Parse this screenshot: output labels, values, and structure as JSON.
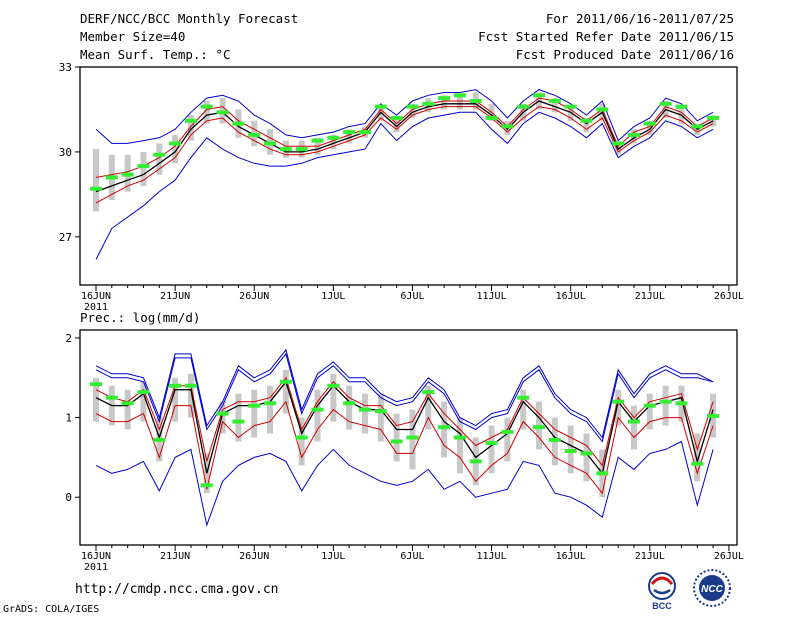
{
  "header": {
    "title": "DERF/NCC/BCC Monthly Forecast",
    "member_size": "Member Size=40",
    "variable": "Mean Surf. Temp.: °C",
    "forecast_period": "For 2011/06/16-2011/07/25",
    "fcst_started": "Fcst Started Refer Date 2011/06/15",
    "fcst_produced": "Fcst Produced Date 2011/06/16"
  },
  "footer": {
    "url": "http://cmdp.ncc.cma.gov.cn",
    "credit": "GrADS: COLA/IGES",
    "logo_left": "BCC",
    "logo_right": "NCC"
  },
  "colors": {
    "ensemble_max": "#0000d0",
    "ensemble_mean": "#000000",
    "ensemble_alt": "#d00000",
    "box": "#c8c8c8",
    "median": "#33ee33"
  },
  "chart_data": [
    {
      "type": "line",
      "panel": "temperature",
      "title": "Mean Surf. Temp.: °C",
      "ylim": [
        25.3,
        33
      ],
      "yticks": [
        27,
        30,
        33
      ],
      "xtick_labels": [
        "16JUN",
        "21JUN",
        "26JUN",
        "1JUL",
        "6JUL",
        "11JUL",
        "16JUL",
        "21JUL",
        "26JUL"
      ],
      "year_label": "2011",
      "x": [
        0,
        1,
        2,
        3,
        4,
        5,
        6,
        7,
        8,
        9,
        10,
        11,
        12,
        13,
        14,
        15,
        16,
        17,
        18,
        19,
        20,
        21,
        22,
        23,
        24,
        25,
        26,
        27,
        28,
        29,
        30,
        31,
        32,
        33,
        34,
        35,
        36,
        37,
        38,
        39
      ],
      "series": [
        {
          "name": "max",
          "values": [
            30.8,
            30.3,
            30.3,
            30.4,
            30.5,
            30.8,
            31.4,
            31.9,
            32.0,
            31.8,
            31.3,
            31.0,
            30.6,
            30.5,
            30.6,
            30.7,
            30.9,
            31.0,
            31.7,
            31.3,
            31.8,
            32.0,
            32.1,
            32.1,
            32.2,
            31.8,
            31.2,
            31.8,
            32.2,
            32.0,
            31.7,
            31.3,
            31.8,
            30.4,
            30.9,
            31.2,
            31.9,
            31.7,
            31.1,
            31.4
          ]
        },
        {
          "name": "upper",
          "values": [
            29.1,
            29.2,
            29.3,
            29.5,
            29.8,
            30.2,
            30.9,
            31.5,
            31.6,
            31.1,
            30.8,
            30.5,
            30.2,
            30.2,
            30.2,
            30.4,
            30.6,
            30.8,
            31.5,
            31.0,
            31.5,
            31.7,
            31.8,
            31.8,
            31.8,
            31.4,
            30.9,
            31.5,
            31.9,
            31.8,
            31.5,
            31.1,
            31.5,
            30.2,
            30.7,
            30.9,
            31.6,
            31.4,
            30.9,
            31.2
          ]
        },
        {
          "name": "mean",
          "values": [
            28.6,
            28.8,
            29.0,
            29.2,
            29.6,
            30.0,
            30.8,
            31.3,
            31.4,
            30.9,
            30.6,
            30.3,
            30.0,
            30.0,
            30.1,
            30.3,
            30.5,
            30.7,
            31.4,
            30.9,
            31.4,
            31.6,
            31.7,
            31.7,
            31.7,
            31.3,
            30.8,
            31.4,
            31.8,
            31.6,
            31.4,
            31.0,
            31.4,
            30.1,
            30.5,
            30.8,
            31.5,
            31.3,
            30.8,
            31.1
          ]
        },
        {
          "name": "lower",
          "values": [
            28.2,
            28.5,
            28.8,
            29.0,
            29.4,
            29.8,
            30.6,
            31.1,
            31.2,
            30.7,
            30.4,
            30.1,
            29.9,
            29.9,
            30.0,
            30.2,
            30.4,
            30.6,
            31.2,
            30.8,
            31.3,
            31.5,
            31.6,
            31.6,
            31.6,
            31.2,
            30.7,
            31.2,
            31.6,
            31.5,
            31.2,
            30.8,
            31.2,
            30.0,
            30.4,
            30.7,
            31.3,
            31.1,
            30.7,
            31.0
          ]
        },
        {
          "name": "min",
          "values": [
            26.2,
            27.3,
            27.7,
            28.1,
            28.6,
            29.0,
            29.8,
            30.5,
            30.1,
            29.8,
            29.6,
            29.5,
            29.5,
            29.6,
            29.8,
            29.9,
            30.0,
            30.1,
            31.0,
            30.4,
            30.9,
            31.2,
            31.3,
            31.4,
            31.4,
            30.8,
            30.3,
            31.0,
            31.4,
            31.2,
            30.9,
            30.5,
            31.0,
            29.8,
            30.2,
            30.5,
            31.1,
            30.9,
            30.5,
            30.8
          ]
        }
      ],
      "boxes": {
        "low": [
          27.9,
          28.3,
          28.6,
          28.8,
          29.2,
          29.6,
          30.4,
          31.0,
          31.0,
          30.5,
          30.2,
          29.9,
          29.8,
          29.8,
          29.9,
          30.1,
          30.3,
          30.5,
          31.1,
          30.7,
          31.2,
          31.4,
          31.5,
          31.5,
          31.5,
          31.1,
          30.6,
          31.1,
          31.5,
          31.4,
          31.1,
          30.7,
          31.1,
          29.9,
          30.3,
          30.6,
          31.2,
          31.0,
          30.6,
          30.9
        ],
        "high": [
          30.1,
          29.9,
          29.9,
          30.0,
          30.3,
          30.6,
          31.3,
          31.8,
          31.9,
          31.5,
          31.1,
          30.8,
          30.4,
          30.4,
          30.5,
          30.6,
          30.8,
          30.9,
          31.6,
          31.2,
          31.7,
          31.9,
          32.0,
          32.0,
          32.1,
          31.7,
          31.1,
          31.7,
          32.1,
          31.9,
          31.6,
          31.2,
          31.7,
          30.3,
          30.8,
          31.1,
          31.8,
          31.6,
          31.0,
          31.3
        ],
        "median": [
          28.7,
          29.1,
          29.2,
          29.5,
          29.9,
          30.3,
          31.1,
          31.6,
          31.4,
          31.0,
          30.6,
          30.3,
          30.1,
          30.1,
          30.4,
          30.5,
          30.7,
          30.7,
          31.6,
          31.2,
          31.6,
          31.7,
          31.9,
          32.0,
          31.8,
          31.2,
          30.9,
          31.6,
          32.0,
          31.8,
          31.6,
          31.1,
          31.5,
          30.3,
          30.6,
          31.0,
          31.7,
          31.6,
          30.9,
          31.2
        ]
      }
    },
    {
      "type": "line",
      "panel": "precipitation",
      "title": "Prec.: log(mm/d)",
      "ylim": [
        -0.6,
        2.1
      ],
      "yticks": [
        0,
        1,
        2
      ],
      "xtick_labels": [
        "16JUN",
        "21JUN",
        "26JUN",
        "1JUL",
        "6JUL",
        "11JUL",
        "16JUL",
        "21JUL",
        "26JUL"
      ],
      "year_label": "2011",
      "x": [
        0,
        1,
        2,
        3,
        4,
        5,
        6,
        7,
        8,
        9,
        10,
        11,
        12,
        13,
        14,
        15,
        16,
        17,
        18,
        19,
        20,
        21,
        22,
        23,
        24,
        25,
        26,
        27,
        28,
        29,
        30,
        31,
        32,
        33,
        34,
        35,
        36,
        37,
        38,
        39
      ],
      "series": [
        {
          "name": "max",
          "values": [
            1.65,
            1.55,
            1.55,
            1.5,
            1.0,
            1.8,
            1.8,
            0.9,
            1.2,
            1.65,
            1.5,
            1.6,
            1.85,
            1.1,
            1.55,
            1.7,
            1.5,
            1.5,
            1.3,
            1.2,
            1.25,
            1.5,
            1.35,
            1.0,
            0.9,
            1.05,
            1.1,
            1.5,
            1.65,
            1.3,
            1.1,
            1.0,
            0.75,
            1.6,
            1.3,
            1.55,
            1.65,
            1.55,
            1.55,
            1.45
          ]
        },
        {
          "name": "upper",
          "values": [
            1.35,
            1.25,
            1.2,
            1.35,
            0.85,
            1.4,
            1.4,
            0.45,
            1.1,
            1.2,
            1.2,
            1.25,
            1.5,
            0.85,
            1.2,
            1.45,
            1.25,
            1.15,
            1.15,
            0.9,
            0.95,
            1.3,
            1.05,
            0.85,
            0.65,
            0.75,
            0.85,
            1.25,
            1.05,
            0.85,
            0.75,
            0.65,
            0.4,
            1.25,
            1.0,
            1.2,
            1.25,
            1.3,
            0.6,
            1.2
          ]
        },
        {
          "name": "mean",
          "values": [
            1.25,
            1.15,
            1.15,
            1.3,
            0.75,
            1.35,
            1.35,
            0.3,
            1.05,
            1.15,
            1.15,
            1.2,
            1.45,
            0.8,
            1.15,
            1.4,
            1.2,
            1.1,
            1.1,
            0.85,
            0.85,
            1.25,
            0.95,
            0.8,
            0.5,
            0.65,
            0.8,
            1.2,
            1.0,
            0.75,
            0.65,
            0.55,
            0.3,
            1.2,
            0.95,
            1.15,
            1.2,
            1.25,
            0.45,
            1.1
          ]
        },
        {
          "name": "lower",
          "values": [
            1.05,
            0.95,
            0.95,
            1.05,
            0.5,
            1.15,
            1.15,
            0.1,
            0.95,
            0.75,
            0.9,
            0.95,
            1.2,
            0.5,
            0.85,
            1.1,
            0.95,
            0.9,
            0.85,
            0.55,
            0.55,
            1.0,
            0.65,
            0.5,
            0.2,
            0.4,
            0.55,
            0.95,
            0.75,
            0.5,
            0.4,
            0.3,
            0.05,
            1.0,
            0.75,
            0.95,
            1.0,
            1.0,
            0.3,
            0.9
          ]
        },
        {
          "name": "min",
          "values": [
            0.4,
            0.3,
            0.35,
            0.45,
            0.08,
            0.5,
            0.6,
            -0.35,
            0.2,
            0.4,
            0.5,
            0.55,
            0.45,
            0.08,
            0.4,
            0.6,
            0.4,
            0.3,
            0.2,
            0.15,
            0.2,
            0.35,
            0.1,
            0.2,
            0.0,
            0.05,
            0.1,
            0.45,
            0.4,
            0.05,
            0.0,
            -0.1,
            -0.25,
            0.5,
            0.35,
            0.55,
            0.6,
            0.7,
            -0.1,
            0.6
          ]
        },
        {
          "name": "upper2",
          "values": [
            1.6,
            1.5,
            1.5,
            1.45,
            0.95,
            1.75,
            1.75,
            0.85,
            1.15,
            1.6,
            1.45,
            1.55,
            1.8,
            1.05,
            1.5,
            1.65,
            1.45,
            1.45,
            1.25,
            1.15,
            1.2,
            1.45,
            1.3,
            0.95,
            0.85,
            1.0,
            1.05,
            1.45,
            1.6,
            1.25,
            1.05,
            0.95,
            0.7,
            1.55,
            1.25,
            1.5,
            1.6,
            1.5,
            1.5,
            1.45
          ]
        }
      ],
      "boxes": {
        "low": [
          0.95,
          0.9,
          0.85,
          0.95,
          0.45,
          0.95,
          1.0,
          0.05,
          0.8,
          0.7,
          0.75,
          0.8,
          1.05,
          0.4,
          0.7,
          0.95,
          0.85,
          0.8,
          0.7,
          0.45,
          0.35,
          0.85,
          0.5,
          0.3,
          0.15,
          0.3,
          0.45,
          0.85,
          0.6,
          0.4,
          0.3,
          0.2,
          0.0,
          0.9,
          0.6,
          0.85,
          0.9,
          0.95,
          0.2,
          0.75
        ],
        "high": [
          1.5,
          1.4,
          1.35,
          1.45,
          1.0,
          1.5,
          1.55,
          0.55,
          1.2,
          1.3,
          1.35,
          1.4,
          1.6,
          1.0,
          1.35,
          1.55,
          1.4,
          1.3,
          1.3,
          1.05,
          1.1,
          1.4,
          1.2,
          1.0,
          0.75,
          0.9,
          1.0,
          1.35,
          1.2,
          1.0,
          0.9,
          0.8,
          0.6,
          1.35,
          1.15,
          1.3,
          1.4,
          1.4,
          0.8,
          1.3
        ],
        "median": [
          1.42,
          1.25,
          1.18,
          1.32,
          0.72,
          1.4,
          1.4,
          0.15,
          1.05,
          0.95,
          1.15,
          1.18,
          1.45,
          0.75,
          1.1,
          1.4,
          1.18,
          1.1,
          1.08,
          0.7,
          0.75,
          1.32,
          0.88,
          0.75,
          0.45,
          0.68,
          0.82,
          1.25,
          0.88,
          0.72,
          0.58,
          0.55,
          0.3,
          1.2,
          0.95,
          1.15,
          1.2,
          1.18,
          0.42,
          1.02
        ]
      }
    }
  ]
}
